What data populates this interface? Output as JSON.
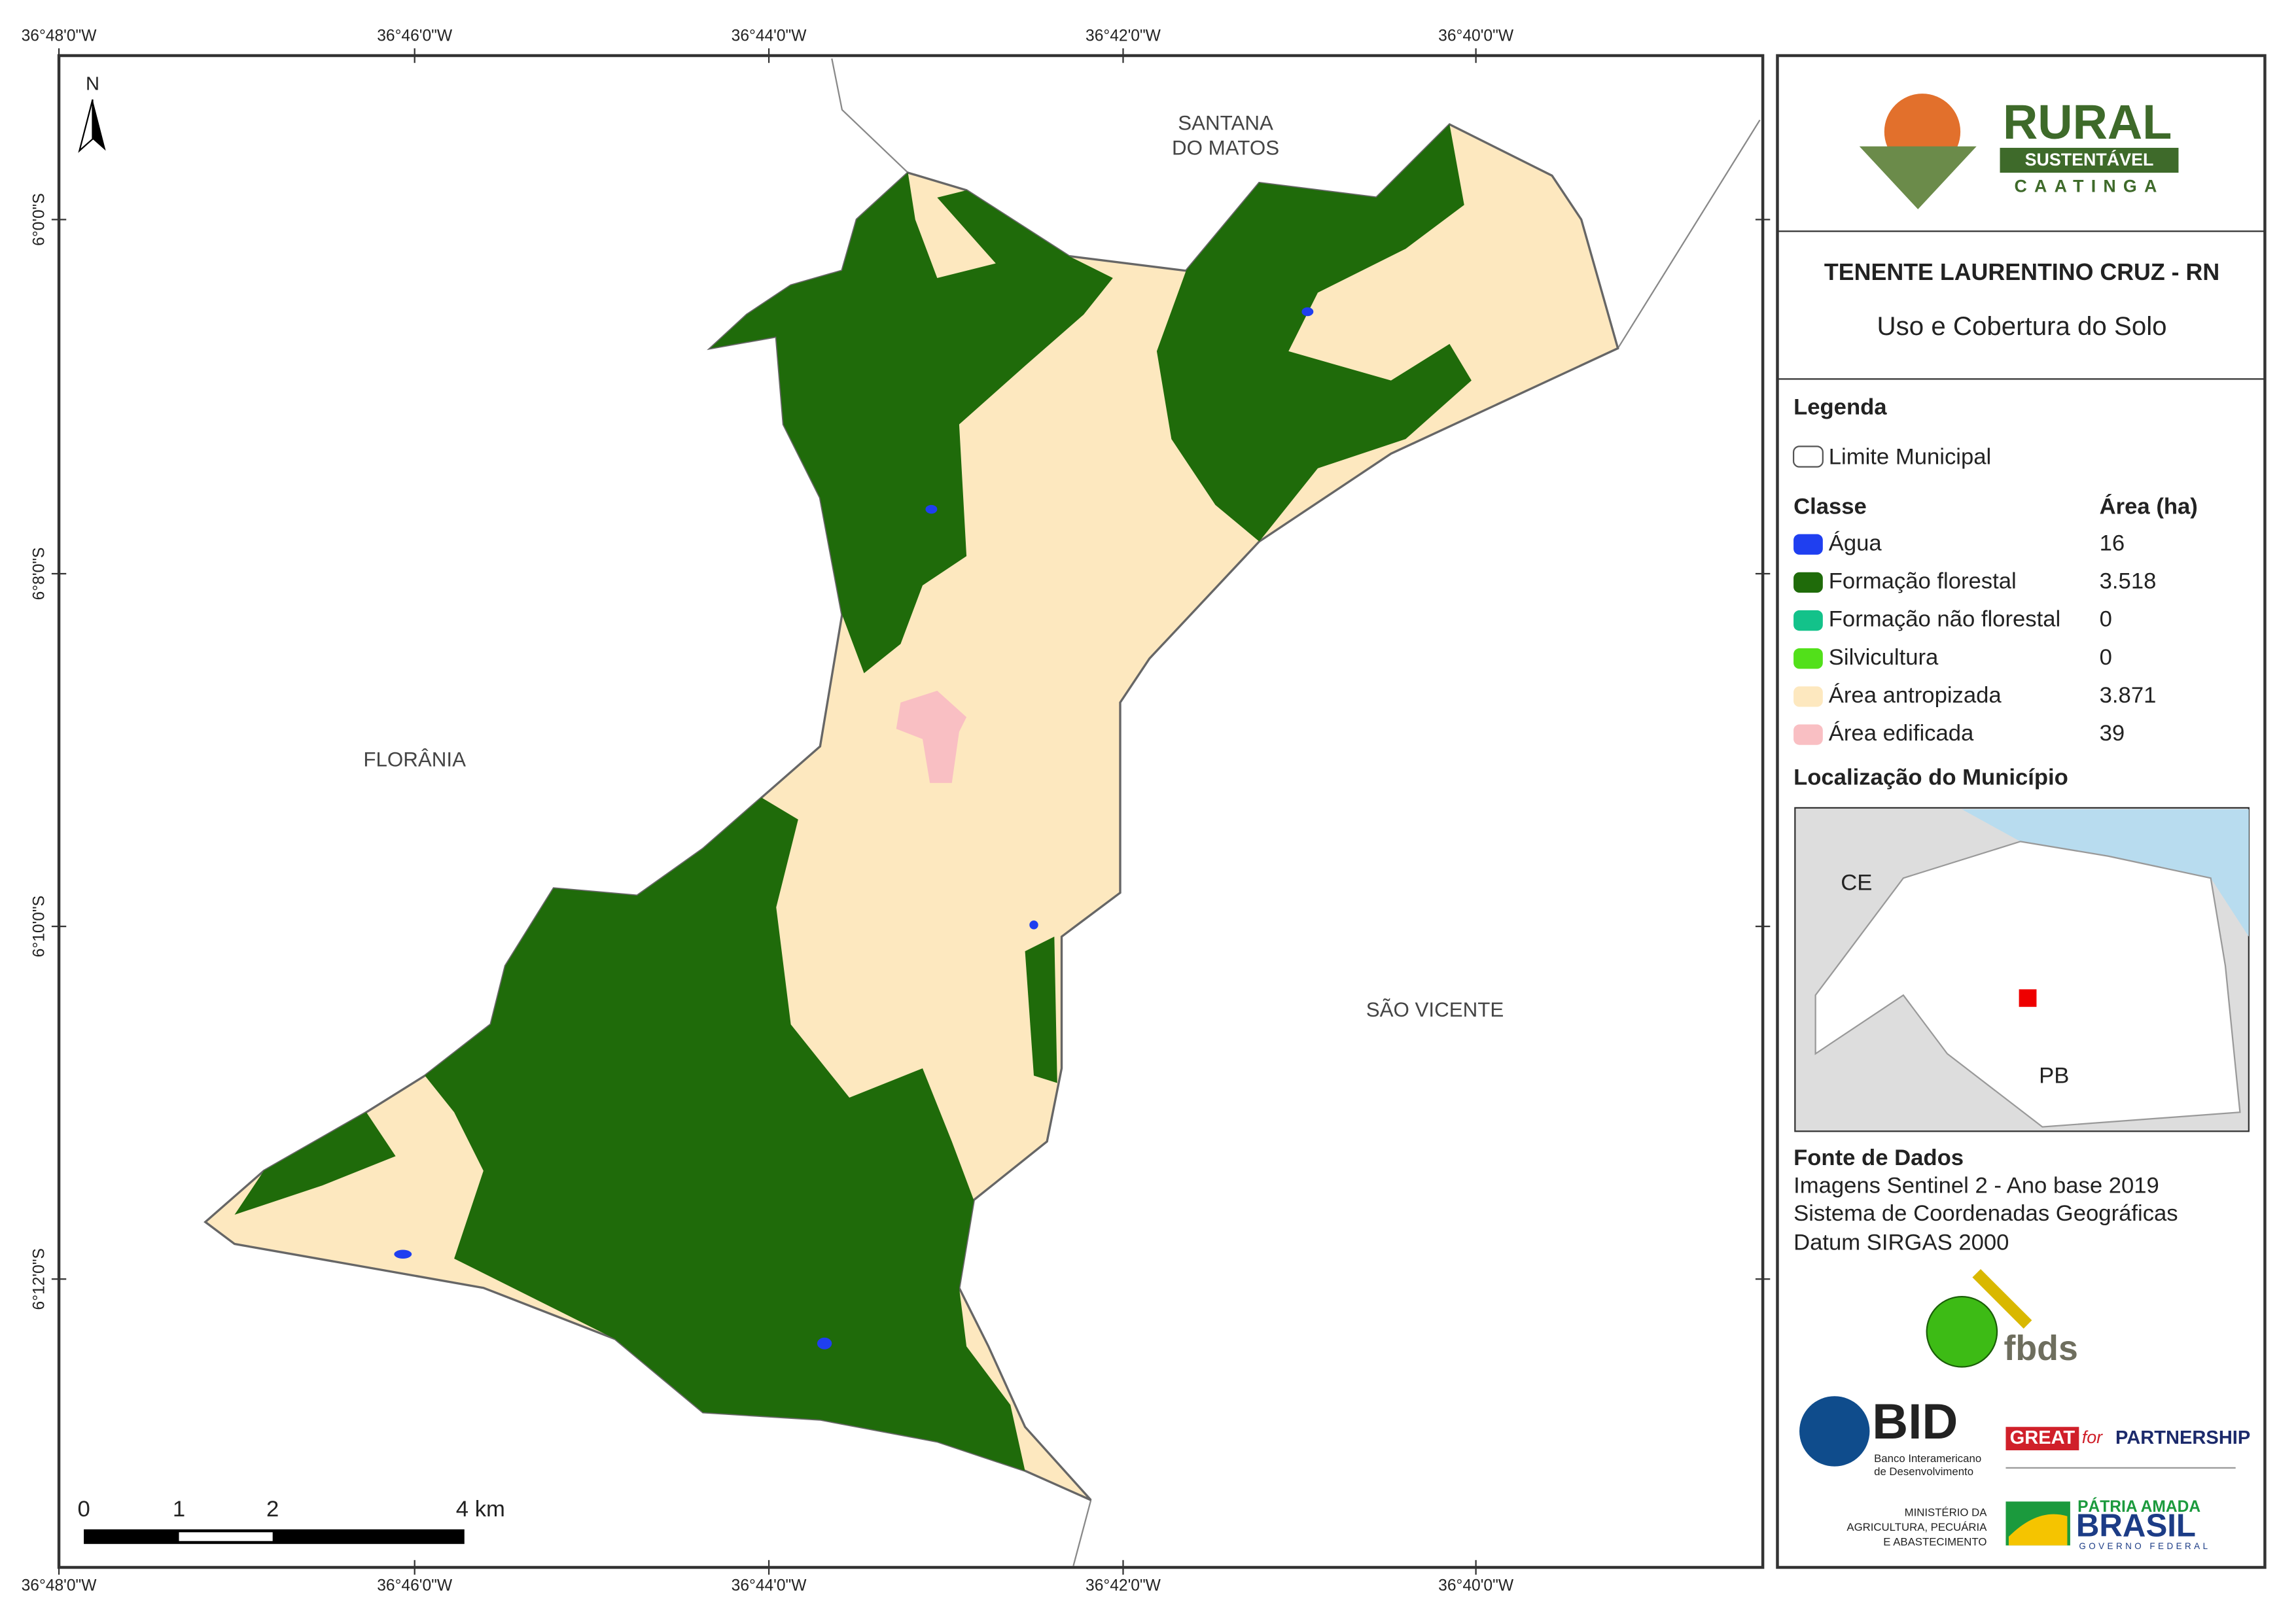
{
  "map": {
    "top_coords": [
      "36°48'0\"W",
      "36°46'0\"W",
      "36°44'0\"W",
      "36°42'0\"W",
      "36°40'0\"W"
    ],
    "bottom_coords": [
      "36°48'0\"W",
      "36°46'0\"W",
      "36°44'0\"W",
      "36°42'0\"W",
      "36°40'0\"W"
    ],
    "left_coords": [
      "6°0'0\"S",
      "6°8'0\"S",
      "6°10'0\"S",
      "6°12'0\"S"
    ],
    "north": "N",
    "places": {
      "santana": [
        "SANTANA",
        "DO MATOS"
      ],
      "florania": "FLORÂNIA",
      "sao_vicente": "SÃO VICENTE"
    },
    "scale_labels": [
      "0",
      "1",
      "2",
      "4 km"
    ]
  },
  "panel": {
    "logo": {
      "rural": "RURAL",
      "sustentavel": "SUSTENTÁVEL",
      "caatinga": "CAATINGA"
    },
    "title": "TENENTE LAURENTINO CRUZ - RN",
    "subtitle": "Uso e Cobertura do Solo",
    "legend": {
      "heading": "Legenda",
      "boundary": "Limite Municipal",
      "class_header": "Classe",
      "area_header": "Área (ha)",
      "classes": [
        {
          "name": "Água",
          "area": "16",
          "color": "#1f3ff0"
        },
        {
          "name": "Formação florestal",
          "area": "3.518",
          "color": "#1f6b0a"
        },
        {
          "name": "Formação não florestal",
          "area": "0",
          "color": "#13c28a"
        },
        {
          "name": "Silvicultura",
          "area": "0",
          "color": "#52e01a"
        },
        {
          "name": "Área antropizada",
          "area": "3.871",
          "color": "#fde8bf"
        },
        {
          "name": "Área edificada",
          "area": "39",
          "color": "#f9bfc3"
        }
      ]
    },
    "location": {
      "heading": "Localização do Município",
      "ce": "CE",
      "pb": "PB"
    },
    "source": {
      "heading": "Fonte de Dados",
      "lines": [
        "Imagens Sentinel 2 - Ano base 2019",
        "Sistema de Coordenadas Geográficas",
        "Datum SIRGAS 2000"
      ]
    },
    "partners": {
      "fbds": "fbds",
      "bid": "BID",
      "bid_sub": [
        "Banco Interamericano",
        "de Desenvolvimento"
      ],
      "great": "GREAT",
      "for": "for",
      "partnership": "PARTNERSHIP",
      "ministry": [
        "MINISTÉRIO DA",
        "AGRICULTURA, PECUÁRIA",
        "E ABASTECIMENTO"
      ],
      "patria": "PÁTRIA AMADA",
      "brasil": "BRASIL",
      "governo": "GOVERNO FEDERAL"
    }
  }
}
